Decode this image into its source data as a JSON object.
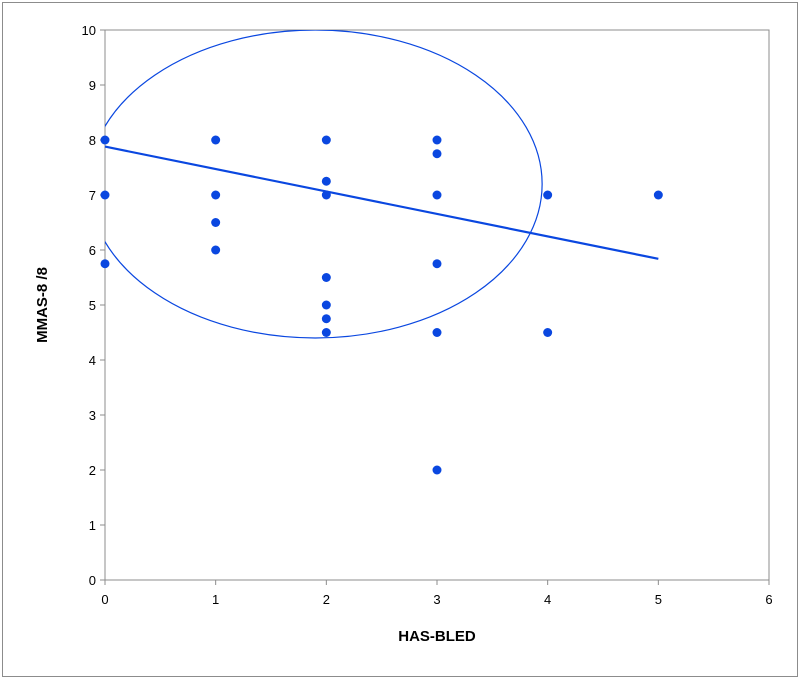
{
  "chart_data": {
    "type": "scatter",
    "title": "",
    "xlabel": "HAS-BLED",
    "ylabel": "MMAS-8 /8",
    "xlim": [
      0,
      6
    ],
    "ylim": [
      0,
      10
    ],
    "xticks": [
      0,
      1,
      2,
      3,
      4,
      5,
      6
    ],
    "yticks": [
      0,
      1,
      2,
      3,
      4,
      5,
      6,
      7,
      8,
      9,
      10
    ],
    "grid": false,
    "legend": "none",
    "colors": {
      "points": "#0a47e0",
      "line": "#0a47e0",
      "axis": "#8c8c8c"
    },
    "series": [
      {
        "points": [
          [
            0,
            8
          ],
          [
            0,
            7
          ],
          [
            0,
            5.75
          ],
          [
            1,
            8
          ],
          [
            1,
            7
          ],
          [
            1,
            6.5
          ],
          [
            1,
            6
          ],
          [
            2,
            8
          ],
          [
            2,
            7.25
          ],
          [
            2,
            7
          ],
          [
            2,
            5.5
          ],
          [
            2,
            5
          ],
          [
            2,
            4.75
          ],
          [
            2,
            4.5
          ],
          [
            3,
            8
          ],
          [
            3,
            7.75
          ],
          [
            3,
            7
          ],
          [
            3,
            5.75
          ],
          [
            3,
            4.5
          ],
          [
            3,
            2
          ],
          [
            4,
            7
          ],
          [
            4,
            4.5
          ],
          [
            5,
            7
          ]
        ]
      }
    ],
    "trendline": {
      "x": [
        0,
        5
      ],
      "y": [
        7.88,
        5.84
      ]
    },
    "ellipse": {
      "cx": 1.9,
      "cy": 7.2,
      "rx": 2.05,
      "ry": 2.8,
      "rotation_deg": 0
    }
  }
}
